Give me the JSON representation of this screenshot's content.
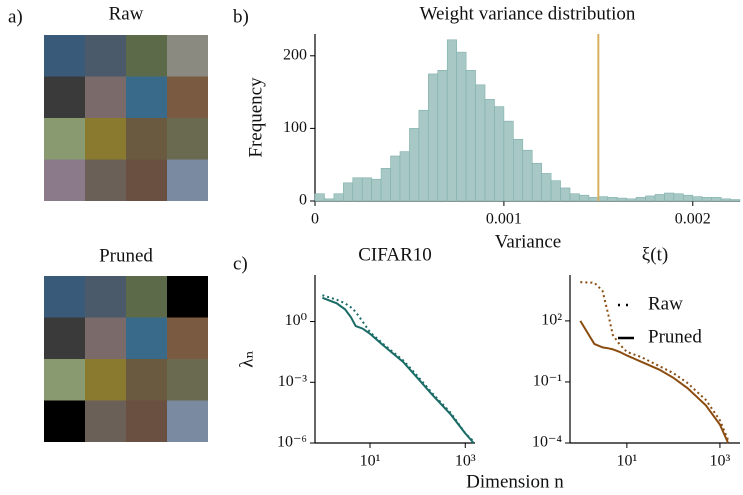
{
  "panels": [
    "a)",
    "b)",
    "c)"
  ],
  "image_grids": [
    {
      "title": "Raw"
    },
    {
      "title": "Pruned"
    }
  ],
  "chart_data": [
    {
      "type": "histogram",
      "title": "Weight variance distribution",
      "xlabel": "Variance",
      "ylabel": "Frequency",
      "color": "#a7c8c5",
      "edgecolor": "#7fb0ac",
      "bins": [
        0,
        5e-05,
        0.0001,
        0.00015,
        0.0002,
        0.00025,
        0.0003,
        0.00035,
        0.0004,
        0.00045,
        0.0005,
        0.00055,
        0.0006,
        0.00065,
        0.0007,
        0.00075,
        0.0008,
        0.00085,
        0.0009,
        0.00095,
        0.001,
        0.00105,
        0.0011,
        0.00115,
        0.0012,
        0.00125,
        0.0013,
        0.00135,
        0.0014,
        0.00145,
        0.0015,
        0.00155,
        0.0016,
        0.00165,
        0.0017,
        0.00175,
        0.0018,
        0.00185,
        0.0019,
        0.00195,
        0.002,
        0.00205,
        0.0021,
        0.00215,
        0.0022,
        0.00225
      ],
      "values": [
        10,
        3,
        10,
        25,
        32,
        32,
        30,
        45,
        62,
        68,
        100,
        125,
        175,
        180,
        222,
        205,
        180,
        160,
        140,
        130,
        110,
        85,
        70,
        52,
        38,
        28,
        18,
        10,
        8,
        5,
        6,
        5,
        4,
        3,
        5,
        7,
        9,
        11,
        10,
        8,
        6,
        5,
        5,
        3,
        2
      ],
      "vline": {
        "x": 0.0015,
        "color": "#d9b060"
      },
      "xlim": [
        0,
        0.00225
      ],
      "ylim": [
        0,
        230
      ],
      "xticks": [
        0,
        0.001,
        0.002
      ],
      "yticks": [
        0,
        100,
        200
      ]
    },
    {
      "type": "line",
      "title": "CIFAR10",
      "xlabel": "Dimension n",
      "ylabel": "λₙ",
      "xscale": "log",
      "yscale": "log",
      "x": [
        1,
        2,
        3,
        4,
        5,
        7,
        10,
        20,
        50,
        100,
        200,
        500,
        1000,
        1500
      ],
      "series": [
        {
          "name": "Raw",
          "color": "#1a6b66",
          "style": "dotted",
          "values": [
            20,
            12,
            8,
            5,
            3,
            1,
            0.3,
            0.07,
            0.012,
            0.002,
            0.0003,
            3e-05,
            3e-06,
            1.2e-06
          ]
        },
        {
          "name": "Pruned",
          "color": "#1a6b66",
          "style": "solid",
          "values": [
            15,
            8,
            4,
            1.6,
            0.6,
            0.45,
            0.25,
            0.06,
            0.01,
            0.0016,
            0.00025,
            2.5e-05,
            3e-06,
            1e-06
          ]
        }
      ],
      "xlim": [
        0.7,
        1600
      ],
      "ylim": [
        1e-06,
        200
      ],
      "xticks": [
        {
          "value": 10,
          "label": "10¹"
        },
        {
          "value": 1000,
          "label": "10³"
        }
      ],
      "yticks": [
        {
          "value": 1e-06,
          "label": "10⁻⁶"
        },
        {
          "value": 0.001,
          "label": "10⁻³"
        },
        {
          "value": 1,
          "label": "10⁰"
        }
      ]
    },
    {
      "type": "line",
      "title": "ξ(t)",
      "xscale": "log",
      "yscale": "log",
      "legend": "upper right",
      "x": [
        1,
        2,
        3,
        4,
        5,
        7,
        10,
        20,
        50,
        100,
        200,
        500,
        1000,
        1500
      ],
      "series": [
        {
          "name": "Raw",
          "color": "#8b4c10",
          "style": "dotted",
          "values": [
            8000,
            7500,
            3000,
            200,
            20,
            7,
            3,
            1.7,
            0.6,
            0.27,
            0.09,
            0.013,
            0.0013,
            0.00014
          ]
        },
        {
          "name": "Pruned",
          "color": "#8b4c10",
          "style": "solid",
          "values": [
            100,
            7.4,
            5,
            4.5,
            4,
            3,
            2,
            1,
            0.4,
            0.16,
            0.05,
            0.007,
            0.0008,
            0.0001
          ]
        }
      ],
      "xlim": [
        0.6,
        2700
      ],
      "ylim": [
        0.0001,
        18000
      ],
      "xticks": [
        {
          "value": 10,
          "label": "10¹"
        },
        {
          "value": 1000,
          "label": "10³"
        }
      ],
      "yticks": [
        {
          "value": 0.0001,
          "label": "10⁻⁴"
        },
        {
          "value": 0.1,
          "label": "10⁻¹"
        },
        {
          "value": 100,
          "label": "10²"
        }
      ]
    }
  ]
}
